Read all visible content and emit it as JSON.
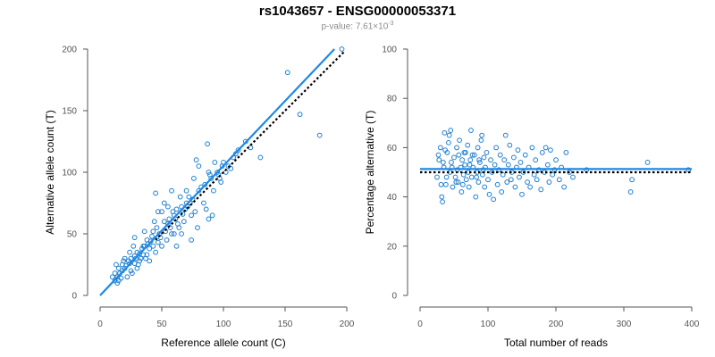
{
  "header": {
    "title": "rs1043657 - ENSG00000053371",
    "pvalue_prefix": "p-value: 7.61×10",
    "pvalue_exponent": "-3"
  },
  "chart_data": [
    {
      "type": "scatter",
      "xlabel": "Reference allele count (C)",
      "ylabel": "Alternative allele count (T)",
      "xlim": [
        0,
        200
      ],
      "ylim": [
        0,
        200
      ],
      "x_ticks": [
        0,
        50,
        100,
        150,
        200
      ],
      "y_ticks": [
        0,
        50,
        100,
        150,
        200
      ],
      "x_tick_labels": [
        "0",
        "50",
        "100",
        "150",
        "200"
      ],
      "y_tick_labels": [
        "0",
        "50",
        "100",
        "150",
        "200"
      ],
      "colors": {
        "points": "#1f7fd0",
        "fit_line": "#1e88e5",
        "reference_line": "#000000"
      },
      "lines": [
        {
          "style": "solid",
          "color": "#1e88e5",
          "from": [
            0,
            0
          ],
          "to": [
            190,
            200
          ]
        },
        {
          "style": "dotted",
          "color": "#000000",
          "from": [
            45,
            45
          ],
          "to": [
            198,
            198
          ]
        }
      ],
      "points": [
        [
          12,
          12
        ],
        [
          10,
          15
        ],
        [
          14,
          10
        ],
        [
          16,
          18
        ],
        [
          18,
          20
        ],
        [
          20,
          22
        ],
        [
          13,
          25
        ],
        [
          22,
          15
        ],
        [
          25,
          30
        ],
        [
          28,
          26
        ],
        [
          30,
          35
        ],
        [
          32,
          28
        ],
        [
          35,
          40
        ],
        [
          20,
          30
        ],
        [
          15,
          12
        ],
        [
          18,
          25
        ],
        [
          25,
          20
        ],
        [
          28,
          32
        ],
        [
          30,
          22
        ],
        [
          33,
          30
        ],
        [
          35,
          33
        ],
        [
          38,
          45
        ],
        [
          40,
          38
        ],
        [
          42,
          48
        ],
        [
          45,
          35
        ],
        [
          46,
          55
        ],
        [
          48,
          50
        ],
        [
          50,
          40
        ],
        [
          52,
          60
        ],
        [
          55,
          58
        ],
        [
          56,
          62
        ],
        [
          58,
          50
        ],
        [
          60,
          65
        ],
        [
          62,
          70
        ],
        [
          64,
          55
        ],
        [
          66,
          72
        ],
        [
          68,
          60
        ],
        [
          70,
          75
        ],
        [
          72,
          80
        ],
        [
          74,
          65
        ],
        [
          76,
          95
        ],
        [
          78,
          110
        ],
        [
          80,
          105
        ],
        [
          82,
          88
        ],
        [
          85,
          90
        ],
        [
          88,
          100
        ],
        [
          90,
          95
        ],
        [
          92,
          85
        ],
        [
          95,
          100
        ],
        [
          98,
          92
        ],
        [
          100,
          108
        ],
        [
          104,
          105
        ],
        [
          108,
          112
        ],
        [
          112,
          118
        ],
        [
          118,
          125
        ],
        [
          122,
          120
        ],
        [
          130,
          112
        ],
        [
          152,
          181
        ],
        [
          162,
          147
        ],
        [
          178,
          130
        ],
        [
          196,
          200
        ],
        [
          24,
          35
        ],
        [
          27,
          40
        ],
        [
          36,
          52
        ],
        [
          44,
          60
        ],
        [
          50,
          68
        ],
        [
          54,
          45
        ],
        [
          60,
          50
        ],
        [
          65,
          80
        ],
        [
          70,
          85
        ],
        [
          75,
          78
        ],
        [
          80,
          85
        ],
        [
          84,
          75
        ],
        [
          86,
          70
        ],
        [
          88,
          62
        ],
        [
          91,
          65
        ],
        [
          96,
          98
        ],
        [
          102,
          100
        ],
        [
          106,
          103
        ],
        [
          110,
          115
        ],
        [
          23,
          28
        ],
        [
          26,
          18
        ],
        [
          31,
          25
        ],
        [
          34,
          38
        ],
        [
          37,
          30
        ],
        [
          39,
          42
        ],
        [
          41,
          44
        ],
        [
          43,
          52
        ],
        [
          47,
          43
        ],
        [
          49,
          47
        ],
        [
          53,
          52
        ],
        [
          57,
          55
        ],
        [
          59,
          68
        ],
        [
          61,
          62
        ],
        [
          63,
          58
        ],
        [
          67,
          66
        ],
        [
          69,
          70
        ],
        [
          71,
          72
        ],
        [
          73,
          75
        ],
        [
          77,
          68
        ],
        [
          15,
          22
        ],
        [
          17,
          14
        ],
        [
          19,
          28
        ],
        [
          21,
          24
        ],
        [
          24,
          26
        ],
        [
          29,
          30
        ],
        [
          32,
          34
        ],
        [
          36,
          40
        ],
        [
          12,
          18
        ],
        [
          14,
          15
        ],
        [
          45,
          83
        ],
        [
          47,
          68
        ],
        [
          52,
          75
        ],
        [
          55,
          72
        ],
        [
          58,
          85
        ],
        [
          62,
          40
        ],
        [
          66,
          50
        ],
        [
          74,
          45
        ],
        [
          79,
          55
        ],
        [
          87,
          123
        ],
        [
          89,
          98
        ],
        [
          93,
          108
        ],
        [
          97,
          95
        ],
        [
          99,
          105
        ],
        [
          28,
          47
        ],
        [
          38,
          33
        ],
        [
          40,
          28
        ],
        [
          43,
          40
        ]
      ]
    },
    {
      "type": "scatter",
      "xlabel": "Total number of reads",
      "ylabel": "Percentage alternative (T)",
      "xlim": [
        0,
        400
      ],
      "ylim": [
        0,
        100
      ],
      "x_ticks": [
        0,
        100,
        200,
        300,
        400
      ],
      "y_ticks": [
        0,
        20,
        40,
        60,
        80,
        100
      ],
      "x_tick_labels": [
        "0",
        "100",
        "200",
        "300",
        "400"
      ],
      "y_tick_labels": [
        "0",
        "20",
        "40",
        "60",
        "80",
        "100"
      ],
      "colors": {
        "points": "#1f7fd0",
        "fit_line": "#1e88e5",
        "reference_line": "#000000"
      },
      "lines": [
        {
          "style": "solid",
          "color": "#1e88e5",
          "from": [
            0,
            51.3
          ],
          "to": [
            400,
            51.3
          ]
        },
        {
          "style": "dotted",
          "color": "#000000",
          "from": [
            0,
            50
          ],
          "to": [
            400,
            50
          ]
        }
      ],
      "points": [
        [
          25,
          48
        ],
        [
          28,
          55
        ],
        [
          30,
          60
        ],
        [
          32,
          40
        ],
        [
          33,
          38
        ],
        [
          35,
          52
        ],
        [
          36,
          66
        ],
        [
          38,
          45
        ],
        [
          40,
          58
        ],
        [
          42,
          62
        ],
        [
          44,
          50
        ],
        [
          45,
          67
        ],
        [
          46,
          54
        ],
        [
          48,
          44
        ],
        [
          50,
          56
        ],
        [
          52,
          48
        ],
        [
          54,
          60
        ],
        [
          55,
          51
        ],
        [
          56,
          46
        ],
        [
          58,
          63
        ],
        [
          60,
          52
        ],
        [
          61,
          42
        ],
        [
          62,
          55
        ],
        [
          64,
          49
        ],
        [
          65,
          58
        ],
        [
          66,
          53
        ],
        [
          68,
          47
        ],
        [
          70,
          61
        ],
        [
          71,
          50
        ],
        [
          72,
          44
        ],
        [
          74,
          55
        ],
        [
          75,
          67
        ],
        [
          76,
          48
        ],
        [
          78,
          52
        ],
        [
          80,
          57
        ],
        [
          82,
          40
        ],
        [
          84,
          50
        ],
        [
          85,
          60
        ],
        [
          86,
          46
        ],
        [
          88,
          54
        ],
        [
          90,
          63
        ],
        [
          91,
          65
        ],
        [
          92,
          49
        ],
        [
          94,
          56
        ],
        [
          95,
          44
        ],
        [
          96,
          52
        ],
        [
          98,
          58
        ],
        [
          100,
          47
        ],
        [
          102,
          41
        ],
        [
          104,
          55
        ],
        [
          106,
          50
        ],
        [
          108,
          39
        ],
        [
          110,
          53
        ],
        [
          112,
          60
        ],
        [
          114,
          45
        ],
        [
          116,
          51
        ],
        [
          118,
          57
        ],
        [
          120,
          42
        ],
        [
          122,
          49
        ],
        [
          124,
          55
        ],
        [
          126,
          65
        ],
        [
          128,
          46
        ],
        [
          130,
          53
        ],
        [
          132,
          61
        ],
        [
          134,
          47
        ],
        [
          135,
          50
        ],
        [
          138,
          56
        ],
        [
          140,
          44
        ],
        [
          142,
          52
        ],
        [
          144,
          59
        ],
        [
          146,
          48
        ],
        [
          148,
          54
        ],
        [
          150,
          41
        ],
        [
          152,
          50
        ],
        [
          155,
          57
        ],
        [
          158,
          46
        ],
        [
          160,
          52
        ],
        [
          162,
          44
        ],
        [
          165,
          60
        ],
        [
          168,
          49
        ],
        [
          170,
          55
        ],
        [
          172,
          47
        ],
        [
          175,
          51
        ],
        [
          178,
          43
        ],
        [
          180,
          58
        ],
        [
          183,
          50
        ],
        [
          185,
          60
        ],
        [
          188,
          53
        ],
        [
          190,
          46
        ],
        [
          192,
          59
        ],
        [
          195,
          49
        ],
        [
          198,
          51
        ],
        [
          200,
          55
        ],
        [
          205,
          47
        ],
        [
          208,
          52
        ],
        [
          212,
          44
        ],
        [
          215,
          58
        ],
        [
          220,
          50
        ],
        [
          225,
          48
        ],
        [
          245,
          51
        ],
        [
          310,
          42
        ],
        [
          312,
          47
        ],
        [
          335,
          54
        ],
        [
          395,
          51
        ],
        [
          27,
          57
        ],
        [
          31,
          45
        ],
        [
          34,
          54
        ],
        [
          37,
          59
        ],
        [
          39,
          48
        ],
        [
          43,
          65
        ],
        [
          47,
          52
        ],
        [
          53,
          46
        ],
        [
          57,
          57
        ],
        [
          63,
          45
        ],
        [
          67,
          58
        ],
        [
          73,
          53
        ],
        [
          77,
          57
        ],
        [
          83,
          48
        ],
        [
          87,
          55
        ],
        [
          93,
          51
        ]
      ]
    }
  ]
}
